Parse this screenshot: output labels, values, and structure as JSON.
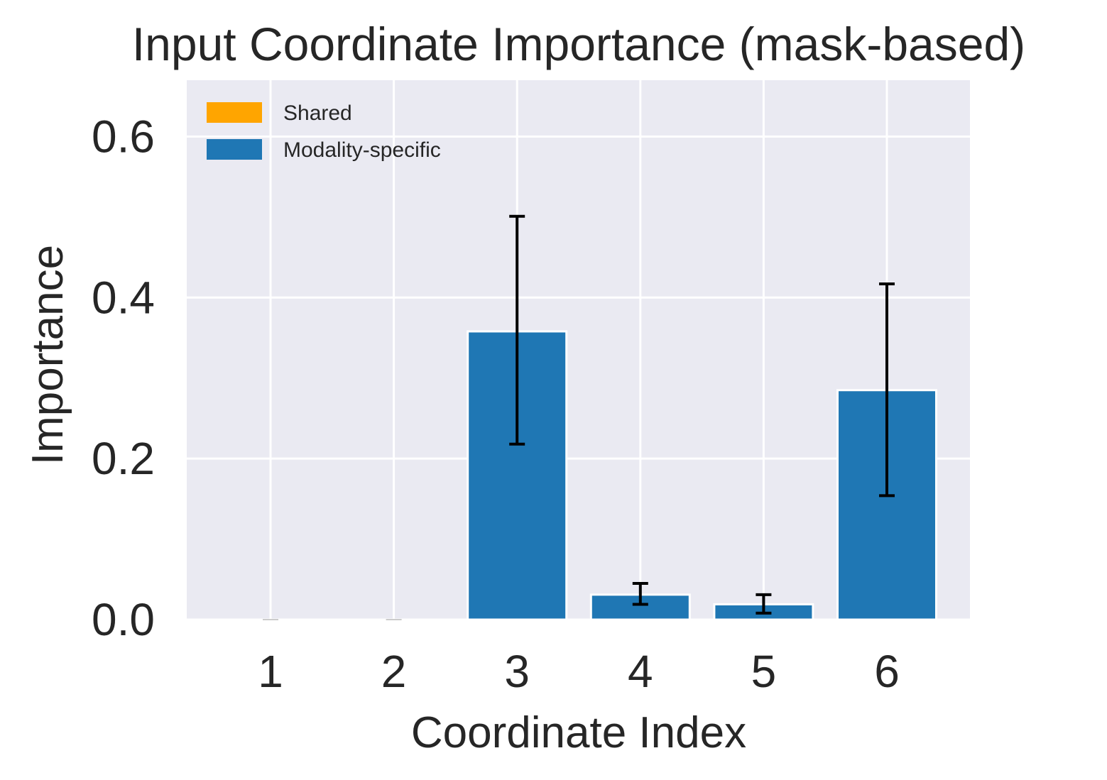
{
  "chart_data": {
    "type": "bar",
    "title": "Input Coordinate Importance (mask-based)",
    "xlabel": "Coordinate Index",
    "ylabel": "Importance",
    "categories": [
      "1",
      "2",
      "3",
      "4",
      "5",
      "6"
    ],
    "ylim": [
      0,
      0.67
    ],
    "yticks": [
      0.0,
      0.2,
      0.4,
      0.6
    ],
    "ytick_labels": [
      "0.0",
      "0.2",
      "0.4",
      "0.6"
    ],
    "grid": true,
    "legend_position": "top-left",
    "legend": [
      {
        "label": "Shared",
        "color": "#FFA500"
      },
      {
        "label": "Modality-specific",
        "color": "#1F77B4"
      }
    ],
    "series": [
      {
        "name": "Modality-specific",
        "color": "#1F77B4",
        "values": [
          0.0,
          0.0,
          0.358,
          0.031,
          0.019,
          0.285
        ],
        "error_low": [
          0.0,
          0.0,
          0.218,
          0.019,
          0.008,
          0.154
        ],
        "error_high": [
          0.0,
          0.0,
          0.501,
          0.045,
          0.031,
          0.417
        ]
      }
    ],
    "colors": {
      "plot_background": "#EAEAF2",
      "grid": "#FFFFFF",
      "text": "#262626",
      "error_bar": "#000000"
    }
  }
}
